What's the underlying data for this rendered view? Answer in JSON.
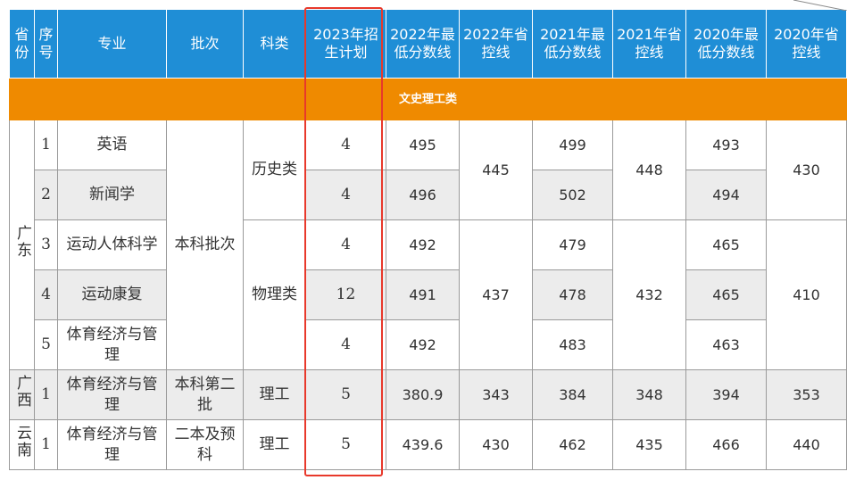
{
  "headers": {
    "province": "省份",
    "seq": "序号",
    "major": "专业",
    "batch": "批次",
    "subject": "科类",
    "plan2023": "2023年招生计划",
    "min2022": "2022年最低分数线",
    "ctrl2022": "2022年省控线",
    "min2021": "2021年最低分数线",
    "ctrl2021": "2021年省控线",
    "min2020": "2020年最低分数线",
    "ctrl2020": "2020年省控线"
  },
  "category": "文史理工类",
  "guangdong": {
    "province": "广东",
    "batch": "本科批次",
    "history": {
      "subject": "历史类",
      "ctrl2022": "445",
      "ctrl2021": "448",
      "ctrl2020": "430",
      "rows": [
        {
          "seq": "1",
          "major": "英语",
          "plan": "4",
          "min2022": "495",
          "min2021": "499",
          "min2020": "493"
        },
        {
          "seq": "2",
          "major": "新闻学",
          "plan": "4",
          "min2022": "496",
          "min2021": "502",
          "min2020": "494"
        }
      ]
    },
    "physics": {
      "subject": "物理类",
      "ctrl2022": "437",
      "ctrl2021": "432",
      "ctrl2020": "410",
      "rows": [
        {
          "seq": "3",
          "major": "运动人体科学",
          "plan": "4",
          "min2022": "492",
          "min2021": "479",
          "min2020": "465"
        },
        {
          "seq": "4",
          "major": "运动康复",
          "plan": "12",
          "min2022": "491",
          "min2021": "478",
          "min2020": "465"
        },
        {
          "seq": "5",
          "major": "体育经济与管理",
          "plan": "4",
          "min2022": "492",
          "min2021": "483",
          "min2020": "463"
        }
      ]
    }
  },
  "guangxi": {
    "province": "广西",
    "seq": "1",
    "major": "体育经济与管理",
    "batch": "本科第二批",
    "subject": "理工",
    "plan": "5",
    "min2022": "380.9",
    "ctrl2022": "343",
    "min2021": "384",
    "ctrl2021": "348",
    "min2020": "394",
    "ctrl2020": "353"
  },
  "yunnan": {
    "province": "云南",
    "seq": "1",
    "major": "体育经济与管理",
    "batch": "二本及预科",
    "subject": "理工",
    "plan": "5",
    "min2022": "439.6",
    "ctrl2022": "430",
    "min2021": "462",
    "ctrl2021": "435",
    "min2020": "466",
    "ctrl2020": "440"
  },
  "colors": {
    "header_bg": "#1f8ed6",
    "category_bg": "#ef8a00",
    "highlight": "#e8392b",
    "row_shade": "#ececec"
  }
}
